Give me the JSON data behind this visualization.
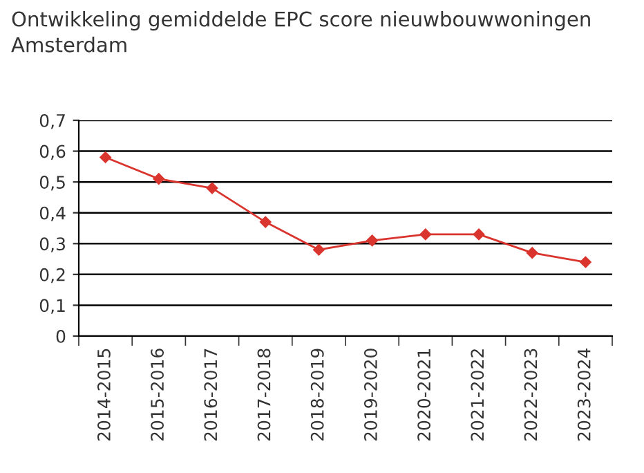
{
  "chart_data": {
    "type": "line",
    "title": "Ontwikkeling gemiddelde EPC score nieuwbouwwoningen\nAmsterdam",
    "categories": [
      "2014-2015",
      "2015-2016",
      "2016-2017",
      "2017-2018",
      "2018-2019",
      "2019-2020",
      "2020-2021",
      "2021-2022",
      "2022-2023",
      "2023-2024"
    ],
    "series": [
      {
        "color": "#d9352e",
        "values": [
          0.58,
          0.51,
          0.48,
          0.37,
          0.28,
          0.31,
          0.33,
          0.33,
          0.27,
          0.24
        ]
      }
    ],
    "ylim": [
      0,
      0.7
    ],
    "yticks": [
      0,
      {
        "value": 0.1,
        "label": "0,1"
      },
      {
        "value": 0.2,
        "label": "0,2"
      },
      {
        "value": 0.3,
        "label": "0,3"
      },
      {
        "value": 0.4,
        "label": "0,4"
      },
      {
        "value": 0.5,
        "label": "0,5"
      },
      {
        "value": 0.6,
        "label": "0,6"
      },
      {
        "value": 0.7,
        "label": "0,7"
      }
    ],
    "grid": "y",
    "marker": "diamond",
    "line_style": "solid",
    "legend": false
  }
}
